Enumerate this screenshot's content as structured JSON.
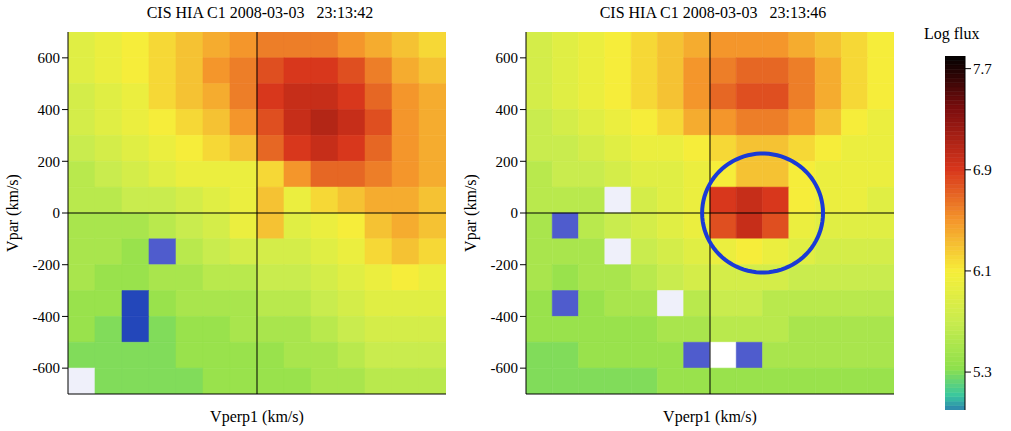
{
  "chart_data": [
    {
      "type": "heatmap",
      "title": "CIS HIA C1 2008-03-03   23:13:42",
      "x_label": "Vperp1 (km/s)",
      "y_label": "Vpar (km/s)",
      "xlim": [
        -700,
        700
      ],
      "ylim": [
        -700,
        700
      ],
      "yticks": [
        -600,
        -400,
        -200,
        0,
        200,
        400,
        600
      ],
      "tick_labels": "y",
      "crosshair": {
        "x": 0,
        "y": 0
      },
      "cells": {
        "x_edges": [
          -700,
          -600,
          -500,
          -400,
          -300,
          -200,
          -100,
          0,
          100,
          200,
          300,
          400,
          500,
          600,
          700
        ],
        "y_edges": [
          700,
          600,
          500,
          400,
          300,
          200,
          100,
          0,
          -100,
          -200,
          -300,
          -400,
          -500,
          -600,
          -700
        ],
        "values": [
          [
            5.9,
            6.0,
            6.1,
            6.2,
            6.3,
            6.4,
            6.5,
            6.6,
            6.6,
            6.6,
            6.5,
            6.4,
            6.3,
            6.2
          ],
          [
            5.9,
            6.0,
            6.1,
            6.2,
            6.3,
            6.5,
            6.6,
            6.8,
            6.9,
            6.9,
            6.8,
            6.6,
            6.4,
            6.3
          ],
          [
            5.8,
            5.9,
            6.0,
            6.2,
            6.3,
            6.4,
            6.6,
            6.9,
            7.0,
            7.0,
            6.9,
            6.7,
            6.5,
            6.4
          ],
          [
            5.8,
            5.9,
            6.0,
            6.1,
            6.2,
            6.3,
            6.5,
            6.8,
            7.0,
            7.1,
            7.0,
            6.8,
            6.5,
            6.4
          ],
          [
            5.7,
            5.8,
            5.9,
            6.0,
            6.1,
            6.2,
            6.3,
            6.7,
            6.9,
            7.0,
            6.9,
            6.7,
            6.5,
            6.4
          ],
          [
            5.6,
            5.7,
            5.8,
            5.9,
            6.0,
            6.0,
            6.0,
            6.2,
            6.5,
            6.7,
            6.7,
            6.6,
            6.5,
            6.4
          ],
          [
            5.6,
            5.6,
            5.7,
            5.7,
            5.8,
            5.9,
            6.0,
            6.3,
            6.0,
            6.2,
            6.3,
            6.4,
            6.4,
            6.3
          ],
          [
            5.5,
            5.5,
            5.5,
            5.6,
            5.7,
            5.8,
            6.0,
            6.3,
            5.9,
            6.0,
            6.1,
            6.3,
            6.4,
            6.3
          ],
          [
            5.5,
            5.5,
            5.4,
            4.8,
            5.6,
            5.7,
            5.8,
            5.8,
            5.8,
            5.9,
            6.0,
            6.2,
            6.3,
            6.2
          ],
          [
            5.5,
            5.4,
            5.4,
            5.5,
            5.5,
            5.6,
            5.6,
            5.7,
            5.7,
            5.8,
            5.9,
            6.0,
            6.1,
            6.0
          ],
          [
            5.4,
            5.4,
            4.9,
            5.4,
            5.5,
            5.5,
            5.5,
            5.6,
            5.6,
            5.7,
            5.8,
            5.9,
            5.9,
            5.9
          ],
          [
            5.4,
            5.3,
            4.9,
            5.3,
            5.4,
            5.4,
            5.5,
            5.5,
            5.5,
            5.6,
            5.7,
            5.8,
            5.8,
            5.8
          ],
          [
            5.3,
            5.3,
            5.3,
            5.3,
            5.4,
            5.4,
            5.4,
            5.4,
            5.5,
            5.5,
            5.6,
            5.7,
            5.7,
            5.7
          ],
          [
            4.6,
            5.3,
            5.3,
            5.3,
            5.3,
            5.4,
            5.4,
            5.4,
            5.4,
            5.5,
            5.5,
            5.6,
            5.6,
            5.6
          ]
        ]
      }
    },
    {
      "type": "heatmap",
      "title": "CIS HIA C1 2008-03-03   23:13:46",
      "x_label": "Vperp1 (km/s)",
      "y_label": "Vpar (km/s)",
      "xlim": [
        -700,
        700
      ],
      "ylim": [
        -700,
        700
      ],
      "yticks": [
        -600,
        -400,
        -200,
        0,
        200,
        400,
        600
      ],
      "tick_labels": "y",
      "crosshair": {
        "x": 0,
        "y": 0
      },
      "highlight_circle": {
        "x": 200,
        "y": 0,
        "r": 230,
        "color": "#1a3ad6"
      },
      "cells": {
        "x_edges": [
          -700,
          -600,
          -500,
          -400,
          -300,
          -200,
          -100,
          0,
          100,
          200,
          300,
          400,
          500,
          600,
          700
        ],
        "y_edges": [
          700,
          600,
          500,
          400,
          300,
          200,
          100,
          0,
          -100,
          -200,
          -300,
          -400,
          -500,
          -600,
          -700
        ],
        "values": [
          [
            5.8,
            5.9,
            6.0,
            6.1,
            6.2,
            6.3,
            6.4,
            6.5,
            6.5,
            6.5,
            6.4,
            6.3,
            6.2,
            6.1
          ],
          [
            5.8,
            5.9,
            6.0,
            6.1,
            6.2,
            6.3,
            6.5,
            6.6,
            6.7,
            6.7,
            6.6,
            6.4,
            6.2,
            6.1
          ],
          [
            5.8,
            5.9,
            6.0,
            6.1,
            6.2,
            6.3,
            6.5,
            6.7,
            6.8,
            6.8,
            6.6,
            6.4,
            6.2,
            6.1
          ],
          [
            5.7,
            5.8,
            5.9,
            6.0,
            6.1,
            6.2,
            6.4,
            6.5,
            6.6,
            6.6,
            6.5,
            6.3,
            6.1,
            6.0
          ],
          [
            5.7,
            5.7,
            5.8,
            5.9,
            6.0,
            6.0,
            6.1,
            6.2,
            6.3,
            6.3,
            6.2,
            6.1,
            6.0,
            6.0
          ],
          [
            5.6,
            5.7,
            5.7,
            5.8,
            5.9,
            5.9,
            6.0,
            6.1,
            6.3,
            6.3,
            6.1,
            6.0,
            6.0,
            6.0
          ],
          [
            5.6,
            5.6,
            5.6,
            4.6,
            5.8,
            5.9,
            6.0,
            6.9,
            7.0,
            6.9,
            6.1,
            6.0,
            6.0,
            5.9
          ],
          [
            5.5,
            4.8,
            5.6,
            5.7,
            5.8,
            5.9,
            6.0,
            6.8,
            7.0,
            6.8,
            6.0,
            5.9,
            5.9,
            5.9
          ],
          [
            5.5,
            5.5,
            5.5,
            4.6,
            5.7,
            5.8,
            5.9,
            6.0,
            6.1,
            6.0,
            5.9,
            5.8,
            5.8,
            5.8
          ],
          [
            5.5,
            5.4,
            5.5,
            5.5,
            5.6,
            5.7,
            5.8,
            5.8,
            5.8,
            5.8,
            5.7,
            5.7,
            5.7,
            5.7
          ],
          [
            5.4,
            4.8,
            5.4,
            5.5,
            5.5,
            4.6,
            5.6,
            5.7,
            5.7,
            5.6,
            5.6,
            5.6,
            5.6,
            5.6
          ],
          [
            5.4,
            5.4,
            5.4,
            5.4,
            5.4,
            5.5,
            5.5,
            5.6,
            5.6,
            5.6,
            5.5,
            5.5,
            5.5,
            5.5
          ],
          [
            5.3,
            5.3,
            5.4,
            5.4,
            5.4,
            5.4,
            4.8,
            4.5,
            4.8,
            5.5,
            5.5,
            5.5,
            5.5,
            5.5
          ],
          [
            5.3,
            5.3,
            5.3,
            5.3,
            5.3,
            5.4,
            5.4,
            5.4,
            5.4,
            5.4,
            5.4,
            5.4,
            5.4,
            5.4
          ]
        ]
      }
    }
  ],
  "colorbar": {
    "title": "Log flux",
    "range": [
      5.0,
      7.8
    ],
    "ticks": [
      5.3,
      6.1,
      6.9,
      7.7
    ]
  }
}
